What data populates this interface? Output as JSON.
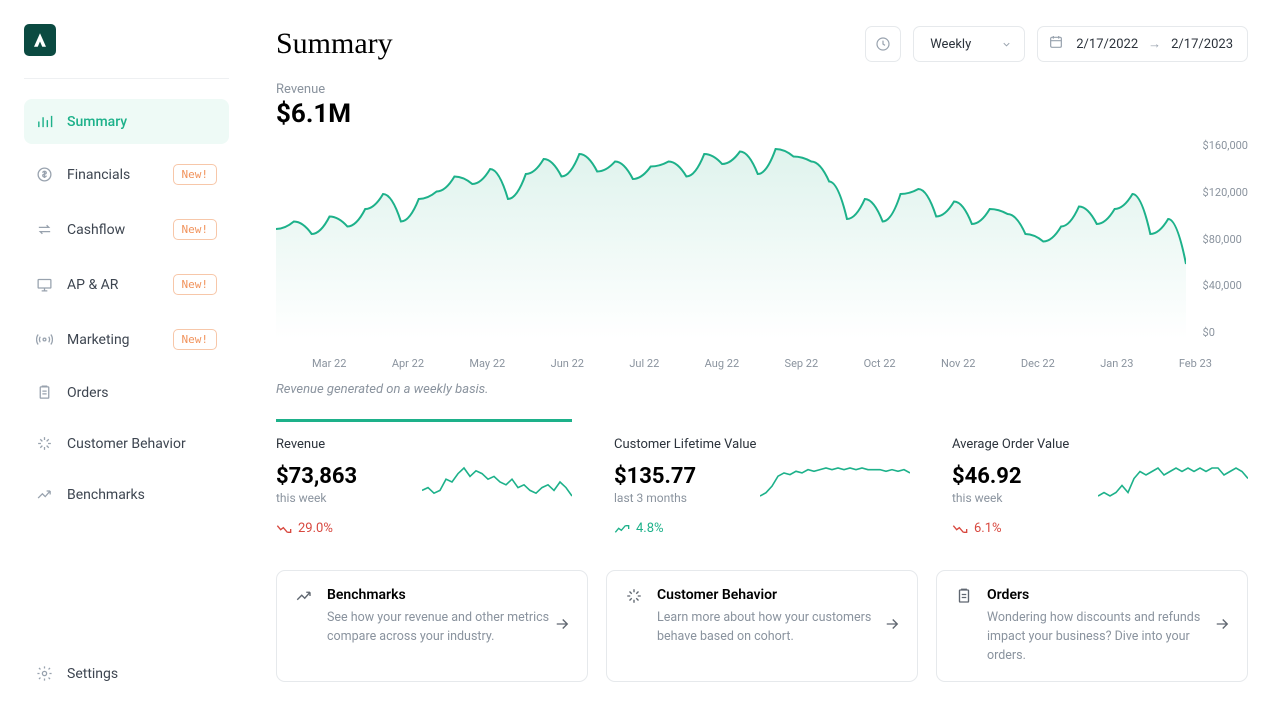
{
  "sidebar": {
    "items": [
      {
        "label": "Summary",
        "active": true
      },
      {
        "label": "Financials",
        "new": true
      },
      {
        "label": "Cashflow",
        "new": true
      },
      {
        "label": "AP & AR",
        "new": true
      },
      {
        "label": "Marketing",
        "new": true
      },
      {
        "label": "Orders"
      },
      {
        "label": "Customer Behavior"
      },
      {
        "label": "Benchmarks"
      }
    ],
    "bottom": {
      "label": "Settings"
    },
    "new_badge_text": "New!"
  },
  "header": {
    "title": "Summary",
    "period_label": "Weekly",
    "date_from": "2/17/2022",
    "date_to": "2/17/2023"
  },
  "revenue": {
    "label": "Revenue",
    "value": "$6.1M",
    "note": "Revenue generated on a weekly basis."
  },
  "chart": {
    "type": "area",
    "line_color": "#1db18a",
    "fill_top": "#dff3ed",
    "fill_bottom": "#ffffff",
    "grid_color": "#eef0f2",
    "background_color": "#ffffff",
    "line_width": 2,
    "ylim": [
      0,
      160000
    ],
    "ytick_step": 40000,
    "y_labels": [
      "$160,000",
      "$120,000",
      "$80,000",
      "$40,000",
      "$0"
    ],
    "x_labels": [
      "Mar 22",
      "Apr 22",
      "May 22",
      "Jun 22",
      "Jul 22",
      "Aug 22",
      "Sep 22",
      "Oct 22",
      "Nov 22",
      "Dec 22",
      "Jan 23",
      "Feb 23"
    ],
    "values": [
      88000,
      94000,
      84000,
      98000,
      90000,
      104000,
      116000,
      94000,
      112000,
      118000,
      130000,
      124000,
      136000,
      112000,
      132000,
      144000,
      130000,
      148000,
      134000,
      142000,
      128000,
      138000,
      142000,
      130000,
      148000,
      140000,
      150000,
      132000,
      152000,
      146000,
      142000,
      126000,
      96000,
      112000,
      94000,
      116000,
      120000,
      98000,
      110000,
      92000,
      104000,
      100000,
      84000,
      78000,
      90000,
      106000,
      92000,
      104000,
      116000,
      84000,
      96000,
      60000
    ]
  },
  "cards": [
    {
      "title": "Revenue",
      "value": "$73,863",
      "sub": "this week",
      "trend_dir": "down",
      "trend": "29.0%",
      "spark": [
        22,
        23,
        21,
        22,
        26,
        25,
        28,
        30,
        27,
        29,
        28,
        26,
        27,
        25,
        24,
        26,
        23,
        24,
        22,
        21,
        23,
        24,
        22,
        25,
        23,
        20
      ]
    },
    {
      "title": "Customer Lifetime Value",
      "value": "$135.77",
      "sub": "last 3 months",
      "trend_dir": "up",
      "trend": "4.8%",
      "spark": [
        16,
        18,
        22,
        28,
        30,
        29,
        31,
        30,
        32,
        31,
        32,
        33,
        32,
        33,
        32,
        33,
        32,
        33,
        32,
        32,
        32,
        31,
        32,
        31,
        32,
        30
      ]
    },
    {
      "title": "Average Order Value",
      "value": "$46.92",
      "sub": "this week",
      "trend_dir": "down",
      "trend": "6.1%",
      "spark": [
        22,
        23,
        22,
        23,
        25,
        23,
        27,
        29,
        28,
        29,
        30,
        28,
        29,
        30,
        29,
        30,
        29,
        30,
        29,
        30,
        30,
        28,
        29,
        30,
        29,
        27
      ]
    }
  ],
  "panels": [
    {
      "title": "Benchmarks",
      "desc": "See how your revenue and other metrics compare across your industry."
    },
    {
      "title": "Customer Behavior",
      "desc": "Learn more about how your customers behave based on cohort."
    },
    {
      "title": "Orders",
      "desc": "Wondering how discounts and refunds impact your business? Dive into your orders."
    }
  ],
  "colors": {
    "accent": "#1db18a",
    "badge_border": "#f7c7a9",
    "badge_text": "#f1935c",
    "text_muted": "#8a939e",
    "down": "#d8483f"
  }
}
